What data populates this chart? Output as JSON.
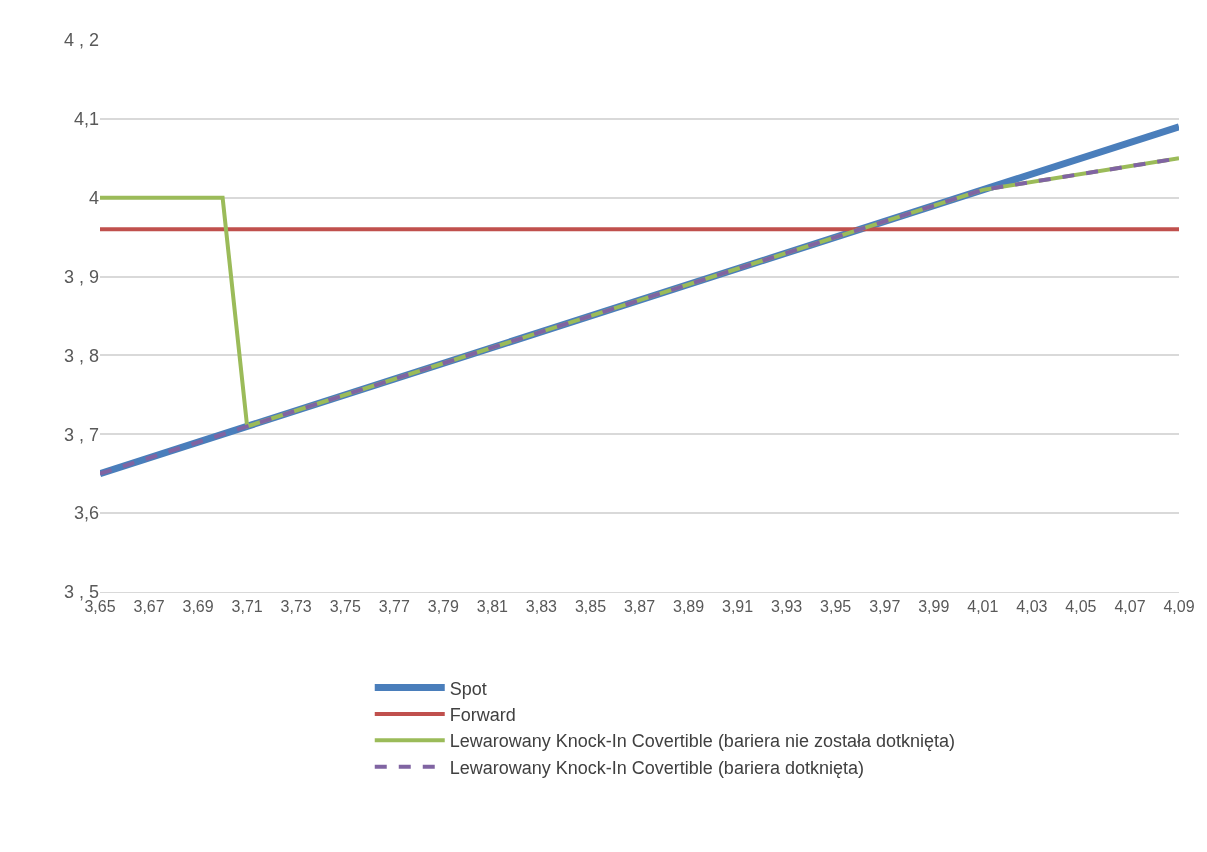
{
  "chart_data": {
    "type": "line",
    "xlim": [
      3.65,
      4.09
    ],
    "xticks": [
      {
        "value": 3.65,
        "label": "3,65"
      },
      {
        "value": 3.67,
        "label": "3,67"
      },
      {
        "value": 3.69,
        "label": "3,69"
      },
      {
        "value": 3.71,
        "label": "3,71"
      },
      {
        "value": 3.73,
        "label": "3,73"
      },
      {
        "value": 3.75,
        "label": "3,75"
      },
      {
        "value": 3.77,
        "label": "3,77"
      },
      {
        "value": 3.79,
        "label": "3,79"
      },
      {
        "value": 3.81,
        "label": "3,81"
      },
      {
        "value": 3.83,
        "label": "3,83"
      },
      {
        "value": 3.85,
        "label": "3,85"
      },
      {
        "value": 3.87,
        "label": "3,87"
      },
      {
        "value": 3.89,
        "label": "3,89"
      },
      {
        "value": 3.91,
        "label": "3,91"
      },
      {
        "value": 3.93,
        "label": "3,93"
      },
      {
        "value": 3.95,
        "label": "3,95"
      },
      {
        "value": 3.97,
        "label": "3,97"
      },
      {
        "value": 3.99,
        "label": "3,99"
      },
      {
        "value": 4.01,
        "label": "4,01"
      },
      {
        "value": 4.03,
        "label": "4,03"
      },
      {
        "value": 4.05,
        "label": "4,05"
      },
      {
        "value": 4.07,
        "label": "4,07"
      },
      {
        "value": 4.09,
        "label": "4,09"
      }
    ],
    "ylim": [
      3.5,
      4.2
    ],
    "yticks": [
      {
        "value": 3.5,
        "label": "3 , 5"
      },
      {
        "value": 3.6,
        "label": "3,6"
      },
      {
        "value": 3.7,
        "label": "3 , 7"
      },
      {
        "value": 3.8,
        "label": "3 , 8"
      },
      {
        "value": 3.9,
        "label": "3 , 9"
      },
      {
        "value": 4.0,
        "label": "4"
      },
      {
        "value": 4.1,
        "label": "4,1"
      },
      {
        "value": 4.2,
        "label": "4 , 2"
      }
    ],
    "grid": "y",
    "legend": "bottom",
    "series": [
      {
        "name": "Spot",
        "color": "#4a7ebb",
        "line_style": "solid",
        "x": [
          3.65,
          4.09
        ],
        "values": [
          3.65,
          4.09
        ]
      },
      {
        "name": "Forward",
        "color": "#c0504d",
        "line_style": "solid",
        "x": [
          3.65,
          4.09
        ],
        "values": [
          3.96,
          3.96
        ]
      },
      {
        "name": "Lewarowany Knock-In Covertible (bariera nie została dotknięta)",
        "color": "#9bbb59",
        "line_style": "solid",
        "x": [
          3.65,
          3.7,
          3.71,
          4.01,
          4.09
        ],
        "values": [
          4.0,
          4.0,
          3.71,
          4.01,
          4.05
        ]
      },
      {
        "name": "Lewarowany Knock-In Covertible (bariera dotknięta)",
        "color": "#8064a2",
        "line_style": "dashed",
        "x": [
          3.65,
          4.01,
          4.09
        ],
        "values": [
          3.65,
          4.01,
          4.05
        ]
      }
    ]
  }
}
